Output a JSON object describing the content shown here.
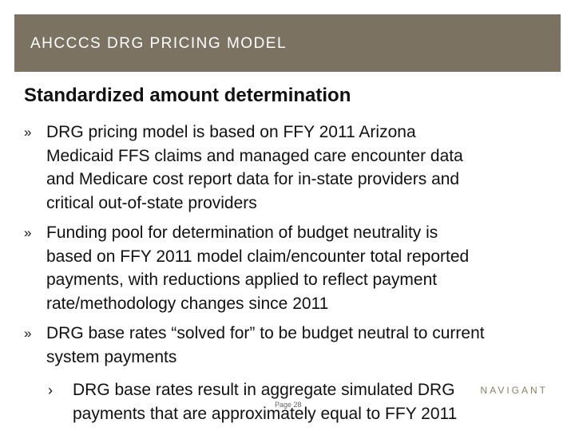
{
  "header": {
    "title": "AHCCCS DRG PRICING MODEL",
    "bar_color": "#7b7262"
  },
  "section": {
    "heading": "Standardized amount determination"
  },
  "bullets": [
    {
      "marker": "»",
      "lines": [
        "DRG pricing model is based on FFY 2011 Arizona",
        "Medicaid FFS claims and managed care encounter data",
        "and Medicare cost report data for in-state providers and",
        "critical out-of-state providers"
      ]
    },
    {
      "marker": "»",
      "lines": [
        "Funding pool for determination of budget neutrality is",
        "based on FFY 2011 model claim/encounter total reported",
        "payments, with reductions applied to reflect payment",
        "rate/methodology changes since 2011"
      ]
    },
    {
      "marker": "»",
      "lines": [
        "DRG base rates “solved for” to be budget neutral to current",
        "system payments"
      ]
    }
  ],
  "sub_bullets": [
    {
      "marker": "›",
      "lines": [
        "DRG base rates result in aggregate simulated DRG",
        "payments that are approximately equal to FFY 2011"
      ]
    }
  ],
  "footer": {
    "logo_text": "NAVIGANT",
    "page_label": "Page 28"
  }
}
